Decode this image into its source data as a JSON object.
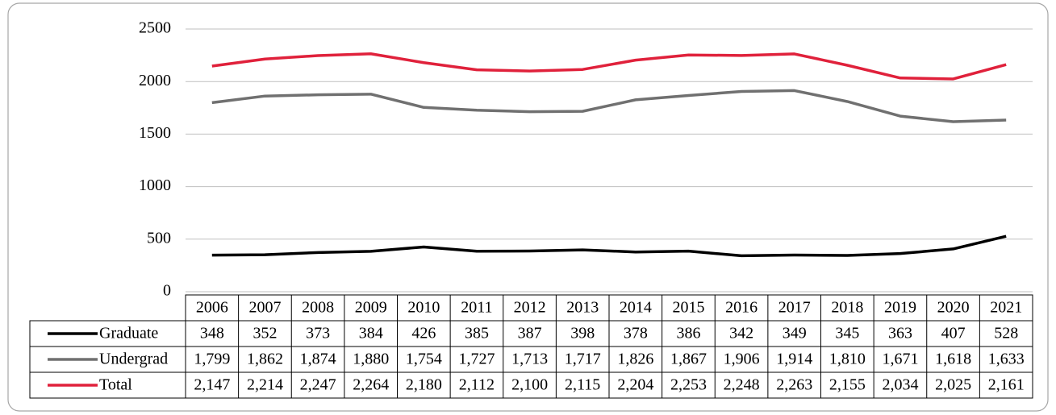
{
  "chart_data": {
    "type": "line",
    "categories": [
      "2006",
      "2007",
      "2008",
      "2009",
      "2010",
      "2011",
      "2012",
      "2013",
      "2014",
      "2015",
      "2016",
      "2017",
      "2018",
      "2019",
      "2020",
      "2021"
    ],
    "series": [
      {
        "name": "Graduate",
        "color": "#000000",
        "values": [
          348,
          352,
          373,
          384,
          426,
          385,
          387,
          398,
          378,
          386,
          342,
          349,
          345,
          363,
          407,
          528
        ]
      },
      {
        "name": "Undergrad",
        "color": "#707070",
        "values": [
          1799,
          1862,
          1874,
          1880,
          1754,
          1727,
          1713,
          1717,
          1826,
          1867,
          1906,
          1914,
          1810,
          1671,
          1618,
          1633
        ],
        "value_labels": [
          "1,799",
          "1,862",
          "1,874",
          "1,880",
          "1,754",
          "1,727",
          "1,713",
          "1,717",
          "1,826",
          "1,867",
          "1,906",
          "1,914",
          "1,810",
          "1,671",
          "1,618",
          "1,633"
        ]
      },
      {
        "name": "Total",
        "color": "#e0213b",
        "values": [
          2147,
          2214,
          2247,
          2264,
          2180,
          2112,
          2100,
          2115,
          2204,
          2253,
          2248,
          2263,
          2155,
          2034,
          2025,
          2161
        ],
        "value_labels": [
          "2,147",
          "2,214",
          "2,247",
          "2,264",
          "2,180",
          "2,112",
          "2,100",
          "2,115",
          "2,204",
          "2,253",
          "2,248",
          "2,263",
          "2,155",
          "2,034",
          "2,025",
          "2,161"
        ]
      }
    ],
    "ylim": [
      0,
      2500
    ],
    "yticks": [
      0,
      500,
      1000,
      1500,
      2000,
      2500
    ],
    "grid": true
  }
}
